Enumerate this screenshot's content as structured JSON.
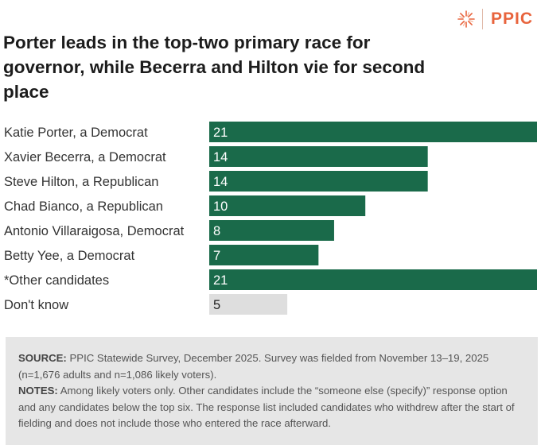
{
  "brand": {
    "name": "PPIC",
    "accent": "#e8643d"
  },
  "title": "Porter leads in the top-two primary race for governor, while Becerra and Hilton vie for second place",
  "chart_data": {
    "type": "bar",
    "orientation": "horizontal",
    "title": "Porter leads in the top-two primary race for governor, while Becerra and Hilton vie for second place",
    "xlabel": "",
    "ylabel": "",
    "xlim": [
      0,
      21
    ],
    "categories": [
      "Katie Porter, a Democrat",
      "Xavier Becerra, a Democrat",
      "Steve Hilton, a Republican",
      "Chad Bianco, a Republican",
      "Antonio Villaraigosa, Democrat",
      "Betty Yee, a Democrat",
      "*Other candidates",
      "Don't know"
    ],
    "values": [
      21,
      14,
      14,
      10,
      8,
      7,
      21,
      5
    ],
    "colors": [
      "#1a6a4a",
      "#1a6a4a",
      "#1a6a4a",
      "#1a6a4a",
      "#1a6a4a",
      "#1a6a4a",
      "#1a6a4a",
      "#dedede"
    ],
    "label_colors": [
      "#ffffff",
      "#ffffff",
      "#ffffff",
      "#ffffff",
      "#ffffff",
      "#ffffff",
      "#ffffff",
      "#222222"
    ]
  },
  "footer": {
    "source_label": "SOURCE:",
    "source_text": " PPIC Statewide Survey, December 2025. Survey was fielded from November 13–19, 2025 (n=1,676 adults and n=1,086 likely voters).",
    "notes_label": "NOTES:",
    "notes_text": " Among likely voters only. Other candidates include the “someone else (specify)” response option and any candidates below the top six. The response list included candidates who withdrew after the start of fielding and does not include those who entered the race afterward."
  }
}
